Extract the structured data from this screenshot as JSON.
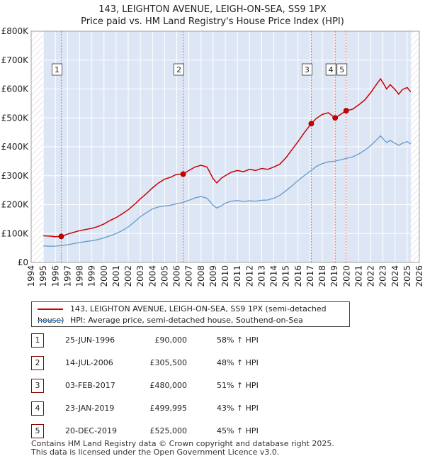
{
  "title_line1": "143, LEIGHTON AVENUE, LEIGH-ON-SEA, SS9 1PX",
  "title_line2": "Price paid vs. HM Land Registry's House Price Index (HPI)",
  "colors": {
    "property_line": "#cc0000",
    "hpi_line": "#6699cc",
    "shade": "#dde6f5",
    "hatch": "#cccccc",
    "vline": "#ee6666",
    "grid": "#ffffff",
    "marker_border": "#8b0000"
  },
  "chart_data": {
    "type": "line",
    "title": "143, LEIGHTON AVENUE, LEIGH-ON-SEA, SS9 1PX — Price paid vs. HM Land Registry's House Price Index (HPI)",
    "xlim": [
      1994,
      2026
    ],
    "ylim": [
      0,
      800000
    ],
    "x_ticks": [
      1994,
      1995,
      1996,
      1997,
      1998,
      1999,
      2000,
      2001,
      2002,
      2003,
      2004,
      2005,
      2006,
      2007,
      2008,
      2009,
      2010,
      2011,
      2012,
      2013,
      2014,
      2015,
      2016,
      2017,
      2018,
      2019,
      2020,
      2021,
      2022,
      2023,
      2024,
      2025,
      2026
    ],
    "y_ticks": [
      {
        "value": 0,
        "label": "£0"
      },
      {
        "value": 100000,
        "label": "£100K"
      },
      {
        "value": 200000,
        "label": "£200K"
      },
      {
        "value": 300000,
        "label": "£300K"
      },
      {
        "value": 400000,
        "label": "£400K"
      },
      {
        "value": 500000,
        "label": "£500K"
      },
      {
        "value": 600000,
        "label": "£600K"
      },
      {
        "value": 700000,
        "label": "£700K"
      },
      {
        "value": 800000,
        "label": "£800K"
      }
    ],
    "data_range": [
      1995.0,
      2025.3
    ],
    "series": [
      {
        "name": "143, LEIGHTON AVENUE, LEIGH-ON-SEA, SS9 1PX (semi-detached house)",
        "points": [
          [
            1995.0,
            92000
          ],
          [
            1995.5,
            91000
          ],
          [
            1996.0,
            89000
          ],
          [
            1996.48,
            90000
          ],
          [
            1997.0,
            98000
          ],
          [
            1997.5,
            104000
          ],
          [
            1998.0,
            110000
          ],
          [
            1998.5,
            114000
          ],
          [
            1999.0,
            118000
          ],
          [
            1999.5,
            124000
          ],
          [
            2000.0,
            133000
          ],
          [
            2000.5,
            145000
          ],
          [
            2001.0,
            155000
          ],
          [
            2001.5,
            168000
          ],
          [
            2002.0,
            182000
          ],
          [
            2002.5,
            200000
          ],
          [
            2003.0,
            220000
          ],
          [
            2003.5,
            238000
          ],
          [
            2004.0,
            258000
          ],
          [
            2004.5,
            275000
          ],
          [
            2005.0,
            288000
          ],
          [
            2005.5,
            295000
          ],
          [
            2006.0,
            305000
          ],
          [
            2006.53,
            305500
          ],
          [
            2007.0,
            318000
          ],
          [
            2007.5,
            330000
          ],
          [
            2008.0,
            336000
          ],
          [
            2008.5,
            330000
          ],
          [
            2009.0,
            290000
          ],
          [
            2009.3,
            275000
          ],
          [
            2009.7,
            292000
          ],
          [
            2010.0,
            300000
          ],
          [
            2010.5,
            312000
          ],
          [
            2011.0,
            318000
          ],
          [
            2011.5,
            314000
          ],
          [
            2012.0,
            322000
          ],
          [
            2012.5,
            318000
          ],
          [
            2013.0,
            325000
          ],
          [
            2013.5,
            322000
          ],
          [
            2014.0,
            330000
          ],
          [
            2014.5,
            340000
          ],
          [
            2015.0,
            362000
          ],
          [
            2015.5,
            390000
          ],
          [
            2016.0,
            418000
          ],
          [
            2016.5,
            448000
          ],
          [
            2017.09,
            480000
          ],
          [
            2017.5,
            498000
          ],
          [
            2018.0,
            512000
          ],
          [
            2018.5,
            518000
          ],
          [
            2019.06,
            499995
          ],
          [
            2019.5,
            512000
          ],
          [
            2019.97,
            525000
          ],
          [
            2020.5,
            530000
          ],
          [
            2021.0,
            545000
          ],
          [
            2021.5,
            562000
          ],
          [
            2022.0,
            588000
          ],
          [
            2022.5,
            618000
          ],
          [
            2022.8,
            635000
          ],
          [
            2023.0,
            622000
          ],
          [
            2023.3,
            600000
          ],
          [
            2023.6,
            615000
          ],
          [
            2024.0,
            598000
          ],
          [
            2024.3,
            582000
          ],
          [
            2024.6,
            598000
          ],
          [
            2025.0,
            605000
          ],
          [
            2025.3,
            590000
          ]
        ]
      },
      {
        "name": "HPI: Average price, semi-detached house, Southend-on-Sea",
        "points": [
          [
            1995.0,
            57000
          ],
          [
            1995.5,
            56000
          ],
          [
            1996.0,
            56500
          ],
          [
            1996.5,
            58000
          ],
          [
            1997.0,
            61000
          ],
          [
            1997.5,
            65000
          ],
          [
            1998.0,
            69000
          ],
          [
            1998.5,
            72000
          ],
          [
            1999.0,
            75000
          ],
          [
            1999.5,
            79000
          ],
          [
            2000.0,
            85000
          ],
          [
            2000.5,
            92000
          ],
          [
            2001.0,
            100000
          ],
          [
            2001.5,
            110000
          ],
          [
            2002.0,
            123000
          ],
          [
            2002.5,
            140000
          ],
          [
            2003.0,
            158000
          ],
          [
            2003.5,
            172000
          ],
          [
            2004.0,
            185000
          ],
          [
            2004.5,
            192000
          ],
          [
            2005.0,
            195000
          ],
          [
            2005.5,
            198000
          ],
          [
            2006.0,
            203000
          ],
          [
            2006.5,
            207000
          ],
          [
            2007.0,
            215000
          ],
          [
            2007.5,
            223000
          ],
          [
            2008.0,
            228000
          ],
          [
            2008.5,
            222000
          ],
          [
            2009.0,
            198000
          ],
          [
            2009.3,
            188000
          ],
          [
            2009.7,
            196000
          ],
          [
            2010.0,
            205000
          ],
          [
            2010.5,
            212000
          ],
          [
            2011.0,
            214000
          ],
          [
            2011.5,
            211000
          ],
          [
            2012.0,
            213000
          ],
          [
            2012.5,
            212000
          ],
          [
            2013.0,
            215000
          ],
          [
            2013.5,
            216000
          ],
          [
            2014.0,
            222000
          ],
          [
            2014.5,
            232000
          ],
          [
            2015.0,
            248000
          ],
          [
            2015.5,
            265000
          ],
          [
            2016.0,
            283000
          ],
          [
            2016.5,
            300000
          ],
          [
            2017.0,
            315000
          ],
          [
            2017.5,
            332000
          ],
          [
            2018.0,
            342000
          ],
          [
            2018.5,
            348000
          ],
          [
            2019.0,
            350000
          ],
          [
            2019.5,
            355000
          ],
          [
            2020.0,
            360000
          ],
          [
            2020.5,
            365000
          ],
          [
            2021.0,
            375000
          ],
          [
            2021.5,
            388000
          ],
          [
            2022.0,
            405000
          ],
          [
            2022.5,
            425000
          ],
          [
            2022.8,
            438000
          ],
          [
            2023.0,
            428000
          ],
          [
            2023.3,
            415000
          ],
          [
            2023.6,
            422000
          ],
          [
            2024.0,
            412000
          ],
          [
            2024.3,
            405000
          ],
          [
            2024.6,
            412000
          ],
          [
            2025.0,
            418000
          ],
          [
            2025.3,
            410000
          ]
        ]
      }
    ],
    "sale_markers": [
      {
        "label": "1",
        "x": 1996.48,
        "y": 90000
      },
      {
        "label": "2",
        "x": 2006.53,
        "y": 305500
      },
      {
        "label": "3",
        "x": 2017.09,
        "y": 480000
      },
      {
        "label": "4",
        "x": 2019.06,
        "y": 499995
      },
      {
        "label": "5",
        "x": 2019.97,
        "y": 525000
      }
    ]
  },
  "legend": {
    "property": "143, LEIGHTON AVENUE, LEIGH-ON-SEA, SS9 1PX (semi-detached house)",
    "hpi": "HPI: Average price, semi-detached house, Southend-on-Sea"
  },
  "sales": [
    {
      "num": "1",
      "date": "25-JUN-1996",
      "price": "£90,000",
      "pct": "58% ↑ HPI"
    },
    {
      "num": "2",
      "date": "14-JUL-2006",
      "price": "£305,500",
      "pct": "48% ↑ HPI"
    },
    {
      "num": "3",
      "date": "03-FEB-2017",
      "price": "£480,000",
      "pct": "51% ↑ HPI"
    },
    {
      "num": "4",
      "date": "23-JAN-2019",
      "price": "£499,995",
      "pct": "43% ↑ HPI"
    },
    {
      "num": "5",
      "date": "20-DEC-2019",
      "price": "£525,000",
      "pct": "45% ↑ HPI"
    }
  ],
  "footer": {
    "line1": "Contains HM Land Registry data © Crown copyright and database right 2025.",
    "line2": "This data is licensed under the Open Government Licence v3.0."
  }
}
